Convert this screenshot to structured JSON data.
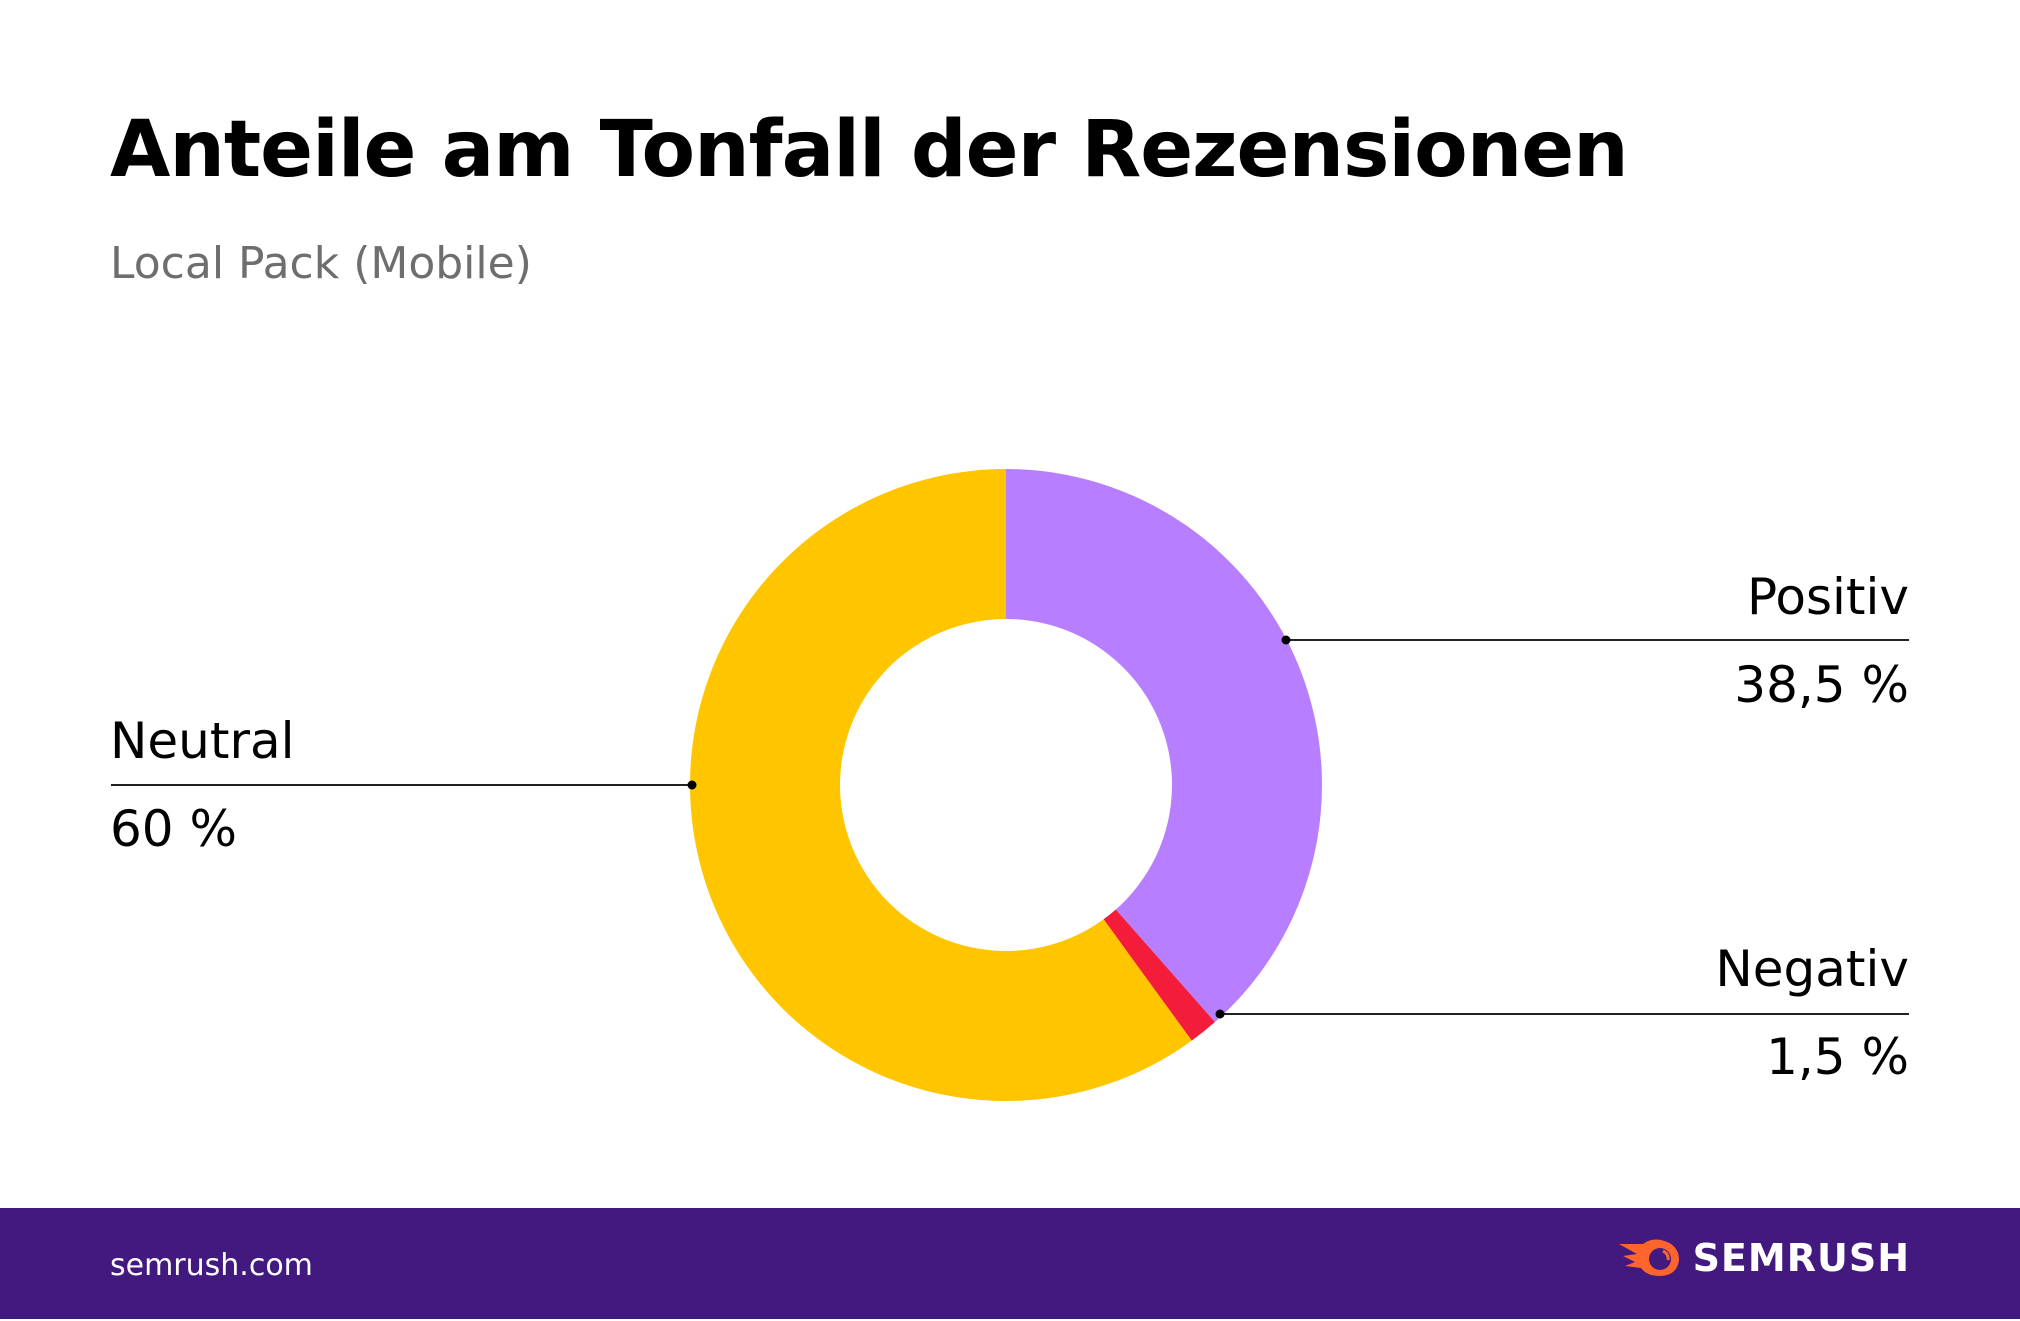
{
  "chart_data": {
    "type": "pie",
    "variant": "donut",
    "title": "Anteile am Tonfall der Rezensionen",
    "subtitle": "Local Pack (Mobile)",
    "slices": [
      {
        "name": "Positiv",
        "value": 38.5,
        "label": "38,5 %",
        "color": "#b77fff"
      },
      {
        "name": "Negativ",
        "value": 1.5,
        "label": "1,5 %",
        "color": "#f31d3b"
      },
      {
        "name": "Neutral",
        "value": 60,
        "label": "60 %",
        "color": "#ffc600"
      }
    ]
  },
  "footer": {
    "site": "semrush.com",
    "brand": "SEMRUSH",
    "brand_icon": "semrush-fireball-icon",
    "background": "#42197f",
    "icon_color": "#ff642d"
  }
}
